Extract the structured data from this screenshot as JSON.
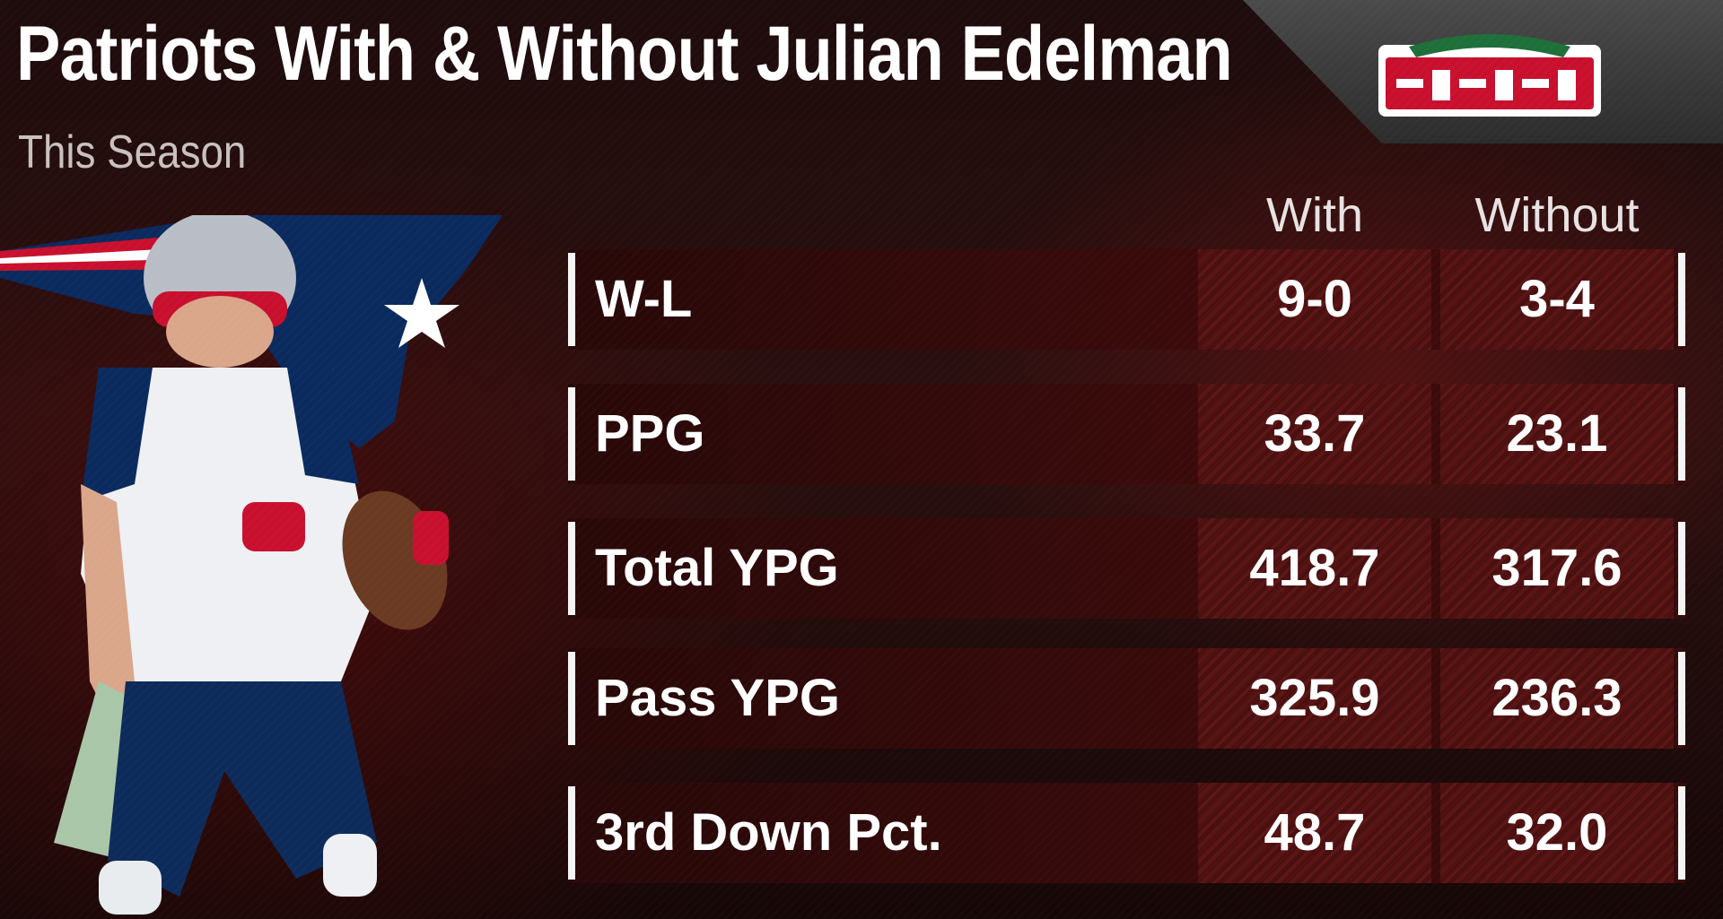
{
  "header": {
    "title": "Patriots With & Without Julian Edelman",
    "subtitle": "This Season"
  },
  "sponsor": {
    "logo_icon": "papa-johns-logo",
    "colors": {
      "red": "#c8102e",
      "green": "#1f6f3a",
      "white": "#ffffff"
    }
  },
  "figure": {
    "icon": "football-player-with-team-logo"
  },
  "chart_data": {
    "type": "table",
    "title": "Patriots With & Without Julian Edelman",
    "subtitle": "This Season",
    "columns": [
      "With",
      "Without"
    ],
    "rows": [
      {
        "label": "W-L",
        "values": [
          "9-0",
          "3-4"
        ]
      },
      {
        "label": "PPG",
        "values": [
          "33.7",
          "23.1"
        ]
      },
      {
        "label": "Total YPG",
        "values": [
          "418.7",
          "317.6"
        ]
      },
      {
        "label": "Pass YPG",
        "values": [
          "325.9",
          "236.3"
        ]
      },
      {
        "label": "3rd Down Pct.",
        "values": [
          "48.7",
          "32.0"
        ]
      }
    ]
  },
  "colors": {
    "background": "#1e0b0b",
    "row_fill": "#3c0a0a",
    "cell_fill": "#5a1414",
    "text": "#ffffff"
  }
}
